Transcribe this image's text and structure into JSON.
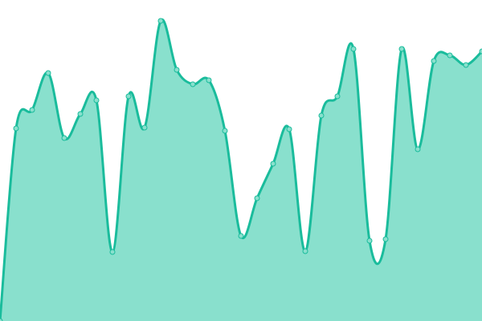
{
  "chart_data": {
    "type": "area",
    "x": [
      0,
      1,
      2,
      3,
      4,
      5,
      6,
      7,
      8,
      9,
      10,
      11,
      12,
      13,
      14,
      15,
      16,
      17,
      18,
      19,
      20,
      21,
      22,
      23,
      24,
      25,
      26,
      27,
      28,
      29,
      30
    ],
    "values": [
      0,
      240,
      263,
      309,
      228,
      258,
      275,
      86,
      280,
      241,
      374,
      313,
      295,
      300,
      237,
      106,
      153,
      196,
      239,
      87,
      256,
      280,
      339,
      100,
      102,
      339,
      214,
      324,
      331,
      319,
      336
    ],
    "ylim": [
      0,
      400
    ],
    "grid": false,
    "legend": "none",
    "colors": {
      "fill": "#89e0cd",
      "line": "#1abc9c",
      "marker": "#89e0cd"
    }
  }
}
